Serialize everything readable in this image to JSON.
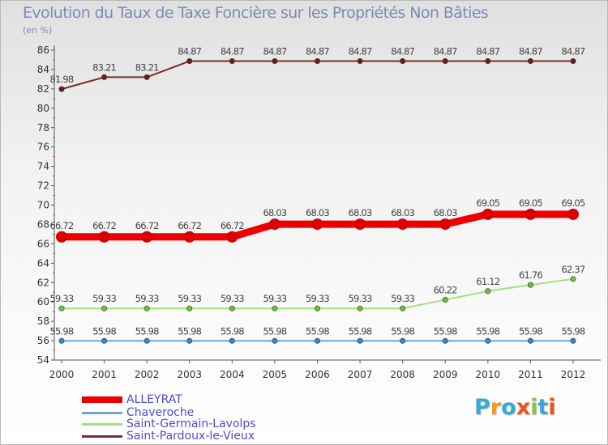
{
  "chart_data": {
    "type": "line",
    "title": "Evolution du Taux de Taxe Foncière sur les Propriétés Non Bâties",
    "ylabel": "(en %)",
    "xlabel": "",
    "categories": [
      "2000",
      "2001",
      "2002",
      "2003",
      "2004",
      "2005",
      "2006",
      "2007",
      "2008",
      "2009",
      "2010",
      "2011",
      "2012"
    ],
    "ylim": [
      54,
      86
    ],
    "yticks": [
      54,
      56,
      58,
      60,
      62,
      64,
      66,
      68,
      70,
      72,
      74,
      76,
      78,
      80,
      82,
      84,
      86
    ],
    "grid": false,
    "legend_position": "bottom-left",
    "series": [
      {
        "name": "ALLEYRAT",
        "color": "#ee0000",
        "marker_color": "#dd0000",
        "values": [
          66.72,
          66.72,
          66.72,
          66.72,
          66.72,
          68.03,
          68.03,
          68.03,
          68.03,
          68.03,
          69.05,
          69.05,
          69.05
        ],
        "labels": [
          "66.72",
          "66.72",
          "66.72",
          "66.72",
          "66.72",
          "68.03",
          "68.03",
          "68.03",
          "68.03",
          "68.03",
          "69.05",
          "69.05",
          "69.05"
        ]
      },
      {
        "name": "Chaveroche",
        "color": "#6ea6d6",
        "marker_color": "#3a85c8",
        "values": [
          55.98,
          55.98,
          55.98,
          55.98,
          55.98,
          55.98,
          55.98,
          55.98,
          55.98,
          55.98,
          55.98,
          55.98,
          55.98
        ],
        "labels": [
          "55.98",
          "55.98",
          "55.98",
          "55.98",
          "55.98",
          "55.98",
          "55.98",
          "55.98",
          "55.98",
          "55.98",
          "55.98",
          "55.98",
          "55.98"
        ]
      },
      {
        "name": "Saint-Germain-Lavolps",
        "color": "#a6e07c",
        "marker_color": "#6cc23f",
        "values": [
          59.33,
          59.33,
          59.33,
          59.33,
          59.33,
          59.33,
          59.33,
          59.33,
          59.33,
          60.22,
          61.12,
          61.76,
          62.37
        ],
        "labels": [
          "59.33",
          "59.33",
          "59.33",
          "59.33",
          "59.33",
          "59.33",
          "59.33",
          "59.33",
          "59.33",
          "60.22",
          "61.12",
          "61.76",
          "62.37"
        ]
      },
      {
        "name": "Saint-Pardoux-le-Vieux",
        "color": "#7a2e2e",
        "marker_color": "#6a1f1f",
        "values": [
          81.98,
          83.21,
          83.21,
          84.87,
          84.87,
          84.87,
          84.87,
          84.87,
          84.87,
          84.87,
          84.87,
          84.87,
          84.87
        ],
        "labels": [
          "81.98",
          "83.21",
          "83.21",
          "84.87",
          "84.87",
          "84.87",
          "84.87",
          "84.87",
          "84.87",
          "84.87",
          "84.87",
          "84.87",
          "84.87"
        ]
      }
    ]
  },
  "logo": {
    "letters": [
      "P",
      "r",
      "o",
      "x",
      "i",
      "t",
      "i"
    ],
    "colors": [
      "#3aa7d9",
      "#f39a1e",
      "#3aa7d9",
      "#e8541b",
      "#8cc43c",
      "#3aa7d9",
      "#e8541b"
    ]
  }
}
